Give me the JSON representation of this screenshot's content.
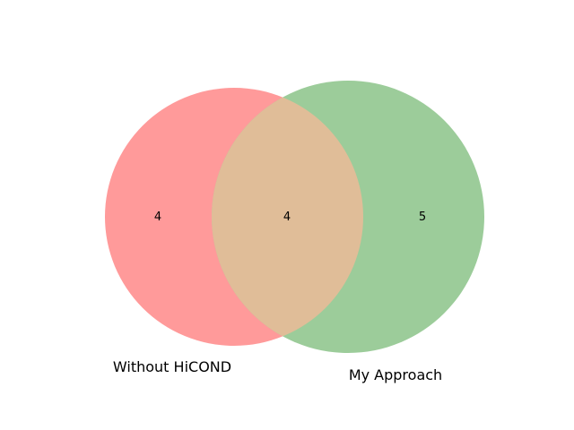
{
  "diagram": {
    "type": "venn2",
    "sets": [
      {
        "name": "Without HiCOND",
        "color": "#ff9a9a"
      },
      {
        "name": "My Approach",
        "color": "#9ccc9a"
      }
    ],
    "overlap_color": "#e0bd98",
    "regions": {
      "only_a": "4",
      "both": "4",
      "only_b": "5"
    }
  }
}
